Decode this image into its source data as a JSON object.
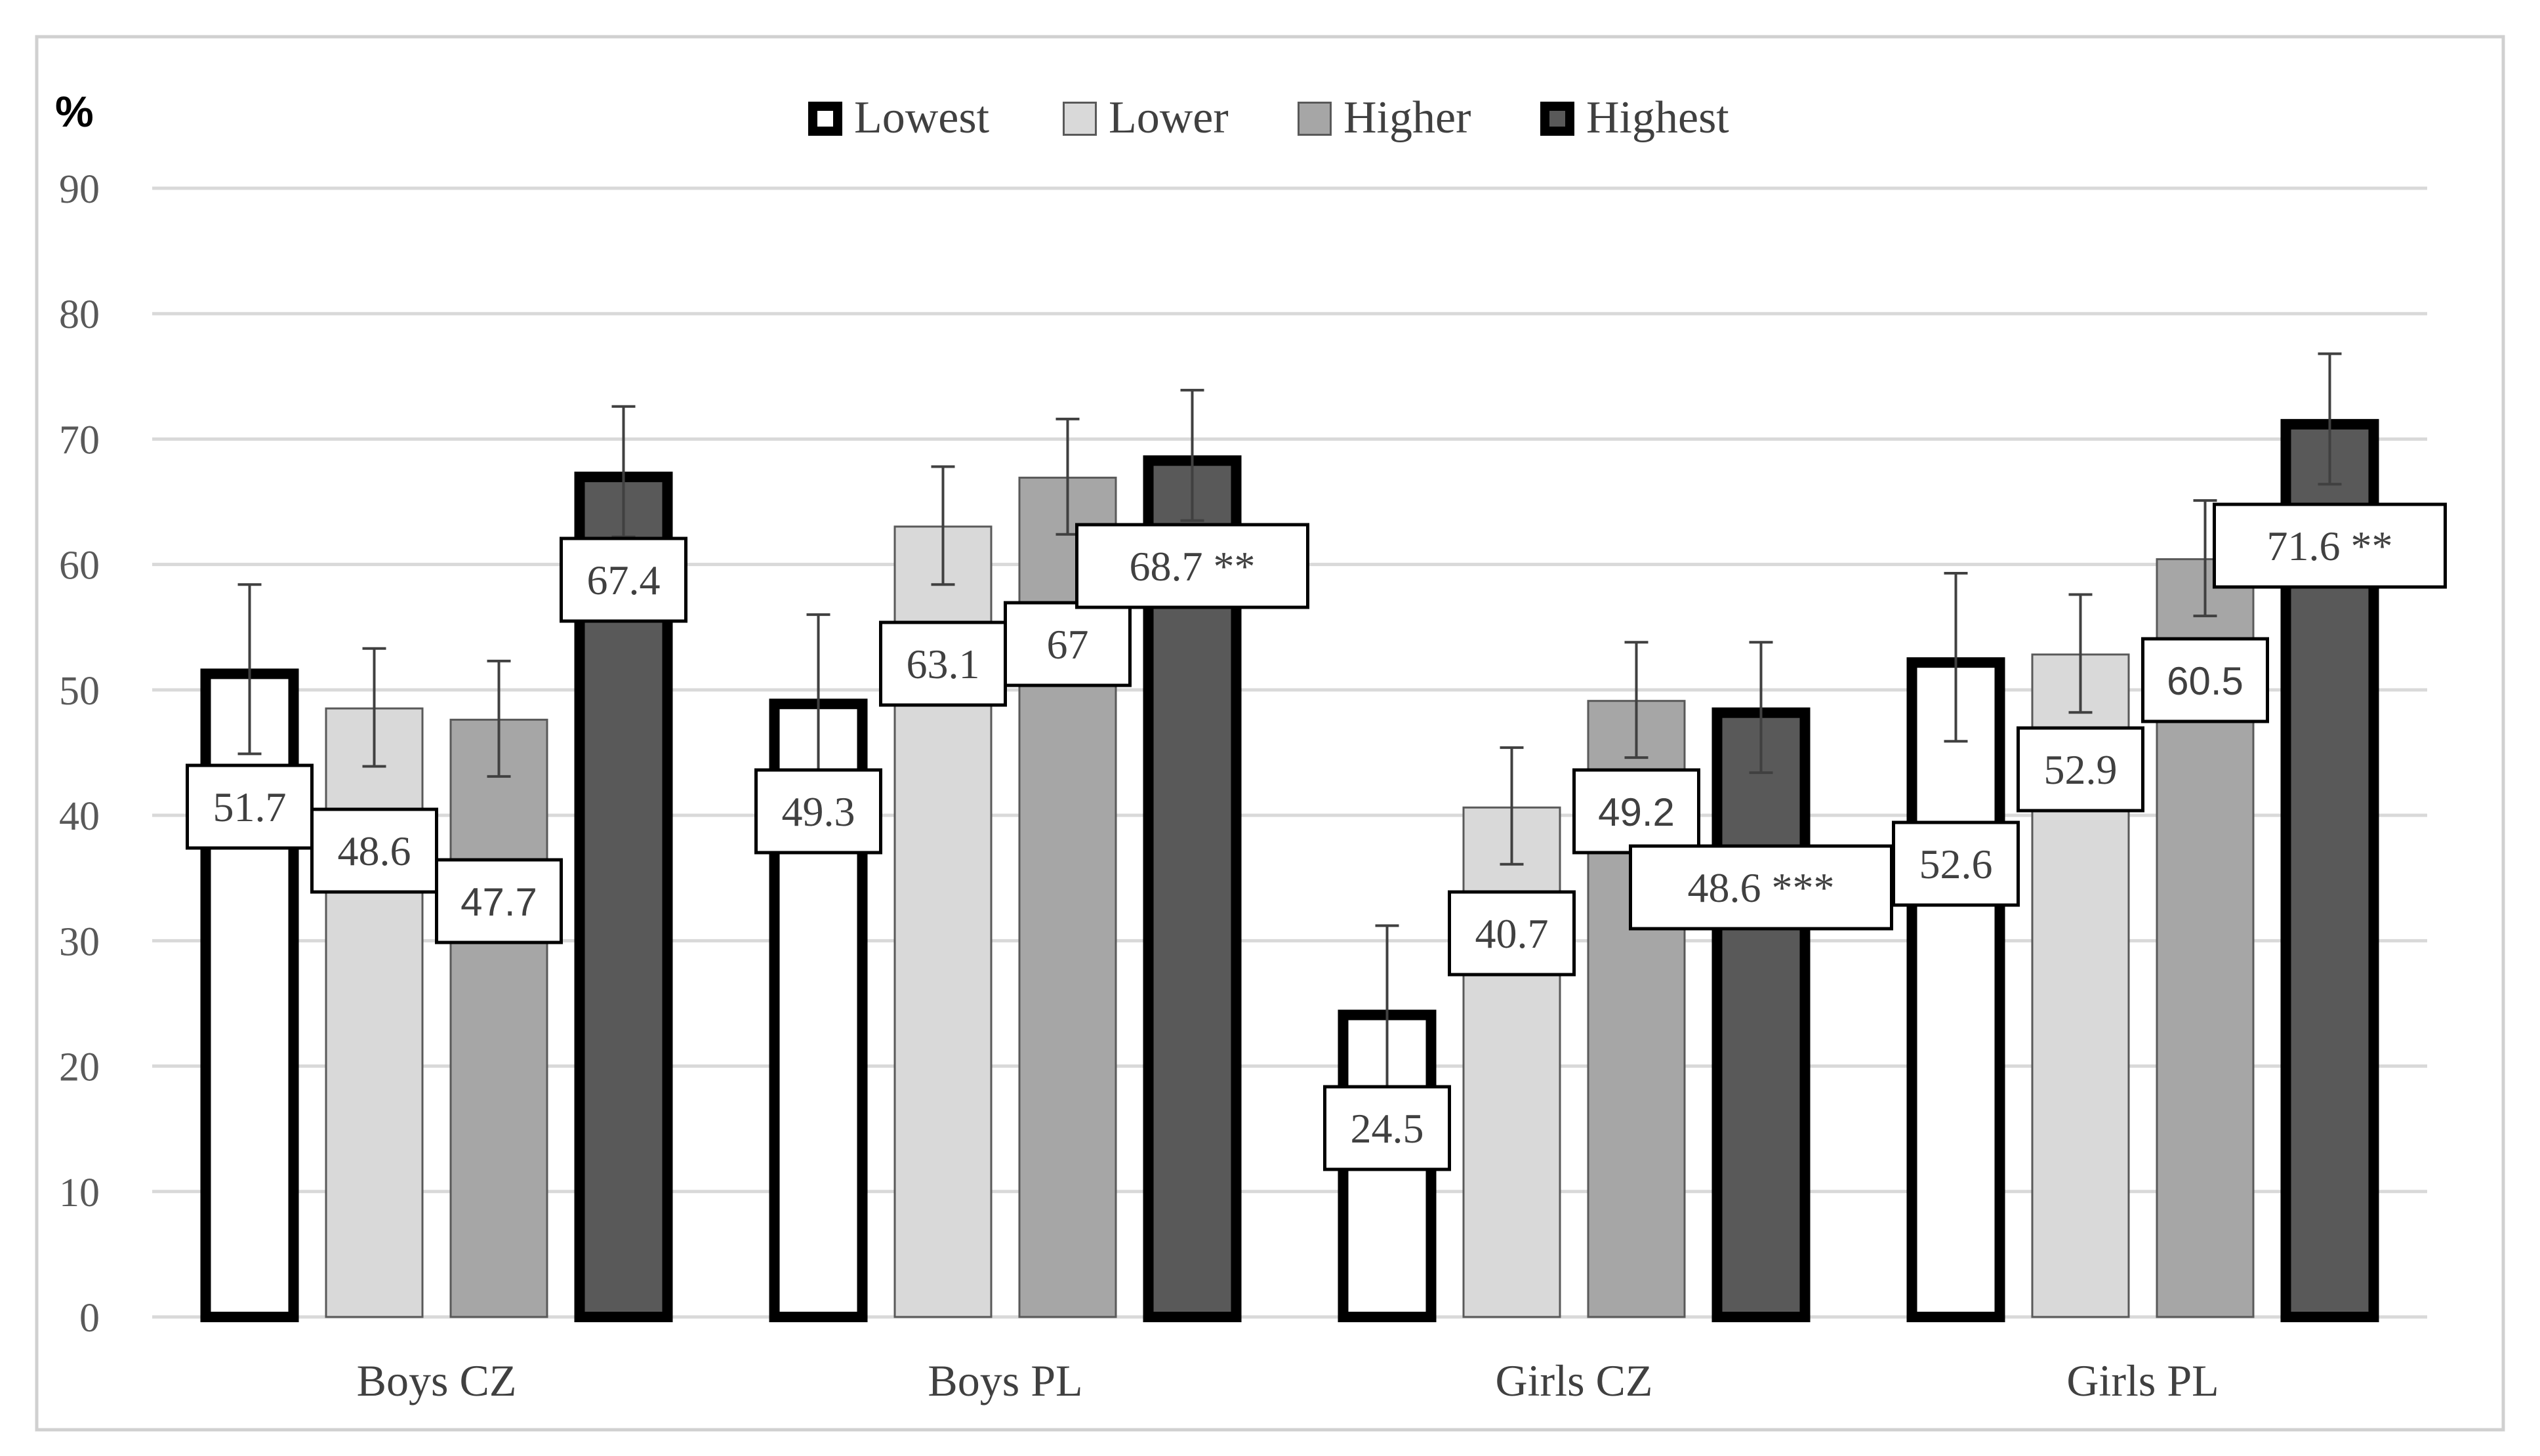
{
  "chart_data": {
    "type": "bar",
    "ylabel": "%",
    "ylim": [
      0,
      90
    ],
    "yticks": [
      "0",
      "10",
      "20",
      "30",
      "40",
      "50",
      "60",
      "70",
      "80",
      "90"
    ],
    "grid": true,
    "legend_position": "top",
    "categories": [
      "Boys CZ",
      "Boys PL",
      "Girls CZ",
      "Girls PL"
    ],
    "series": [
      {
        "name": "Lowest",
        "color": "#ffffff",
        "border": "#000000",
        "values": [
          51.7,
          49.3,
          24.5,
          52.6
        ],
        "error_low": [
          44.9,
          42.6,
          17.8,
          45.9
        ],
        "error_high": [
          58.4,
          56.0,
          31.2,
          59.3
        ],
        "labels": [
          "51.7",
          "49.3",
          "24.5",
          "52.6"
        ]
      },
      {
        "name": "Lower",
        "color": "#d9d9d9",
        "border": "#595959",
        "values": [
          48.6,
          63.1,
          40.7,
          52.9
        ],
        "error_low": [
          43.9,
          58.4,
          36.1,
          48.2
        ],
        "error_high": [
          53.3,
          67.8,
          45.4,
          57.6
        ],
        "labels": [
          "48.6",
          "63.1",
          "40.7",
          "52.9"
        ]
      },
      {
        "name": "Higher",
        "color": "#a6a6a6",
        "border": "#595959",
        "values": [
          47.7,
          67.0,
          49.2,
          60.5
        ],
        "error_low": [
          43.1,
          62.4,
          44.6,
          55.9
        ],
        "error_high": [
          52.3,
          71.6,
          53.8,
          65.1
        ],
        "labels": [
          "47.7",
          "67",
          "49.2",
          "60.5"
        ]
      },
      {
        "name": "Highest",
        "color": "#595959",
        "border": "#000000",
        "values": [
          67.4,
          68.7,
          48.6,
          71.6
        ],
        "error_low": [
          62.2,
          63.5,
          43.4,
          66.4
        ],
        "error_high": [
          72.6,
          73.9,
          53.8,
          76.8
        ],
        "labels": [
          "67.4",
          "68.7 **",
          "48.6 ***",
          "71.6 **"
        ]
      }
    ]
  }
}
